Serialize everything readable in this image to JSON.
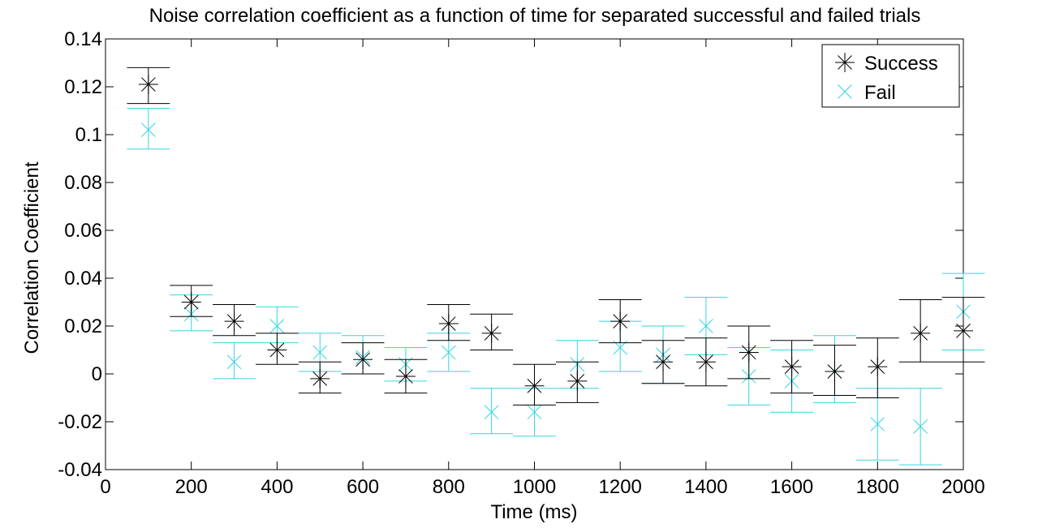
{
  "chart_data": {
    "type": "scatter",
    "title": "Noise correlation coefficient as a function of time for separated successful and failed trials",
    "xlabel": "Time (ms)",
    "ylabel": "Correlation Coefficient",
    "xlim": [
      0,
      2000
    ],
    "ylim": [
      -0.04,
      0.14
    ],
    "xticks": [
      0,
      200,
      400,
      600,
      800,
      1000,
      1200,
      1400,
      1600,
      1800,
      2000
    ],
    "yticks": [
      -0.04,
      -0.02,
      0,
      0.02,
      0.04,
      0.06,
      0.08,
      0.1,
      0.12,
      0.14
    ],
    "xtick_labels": [
      "0",
      "200",
      "400",
      "600",
      "800",
      "1000",
      "1200",
      "1400",
      "1600",
      "1800",
      "2000"
    ],
    "ytick_labels": [
      "-0.04",
      "-0.02",
      "0",
      "0.02",
      "0.04",
      "0.06",
      "0.08",
      "0.1",
      "0.12",
      "0.14"
    ],
    "grid": false,
    "legend_position": "top-right",
    "x": [
      100,
      200,
      300,
      400,
      500,
      600,
      700,
      800,
      900,
      1000,
      1100,
      1200,
      1300,
      1400,
      1500,
      1600,
      1700,
      1800,
      1900,
      2000
    ],
    "series": [
      {
        "name": "Success",
        "color": "#000000",
        "marker": "asterisk",
        "values": [
          0.121,
          0.03,
          0.022,
          0.01,
          -0.002,
          0.006,
          -0.001,
          0.021,
          0.017,
          -0.005,
          -0.003,
          0.022,
          0.005,
          0.005,
          0.009,
          0.003,
          0.001,
          0.003,
          0.017,
          0.018
        ],
        "lower": [
          0.113,
          0.024,
          0.016,
          0.004,
          -0.008,
          0.0,
          -0.008,
          0.014,
          0.01,
          -0.013,
          -0.012,
          0.013,
          -0.004,
          -0.005,
          -0.002,
          -0.008,
          -0.009,
          -0.01,
          0.005,
          0.005
        ],
        "upper": [
          0.128,
          0.037,
          0.029,
          0.017,
          0.005,
          0.013,
          0.006,
          0.029,
          0.025,
          0.004,
          0.005,
          0.031,
          0.014,
          0.015,
          0.02,
          0.014,
          0.012,
          0.015,
          0.031,
          0.032
        ]
      },
      {
        "name": "Fail",
        "color": "#33d6e0",
        "marker": "x",
        "values": [
          0.102,
          0.025,
          0.005,
          0.02,
          0.009,
          0.007,
          0.004,
          0.009,
          -0.016,
          -0.016,
          0.004,
          0.011,
          0.008,
          0.02,
          -0.001,
          -0.003,
          0.001,
          -0.021,
          -0.022,
          0.026
        ],
        "lower": [
          0.094,
          0.018,
          -0.002,
          0.013,
          0.001,
          0.0,
          -0.003,
          0.001,
          -0.025,
          -0.026,
          -0.006,
          0.001,
          -0.004,
          0.008,
          -0.013,
          -0.016,
          -0.012,
          -0.036,
          -0.038,
          0.01
        ],
        "upper": [
          0.111,
          0.033,
          0.013,
          0.028,
          0.017,
          0.016,
          0.011,
          0.017,
          -0.006,
          -0.006,
          0.014,
          0.022,
          0.02,
          0.032,
          0.011,
          0.01,
          0.016,
          -0.006,
          -0.006,
          0.042
        ]
      }
    ]
  }
}
